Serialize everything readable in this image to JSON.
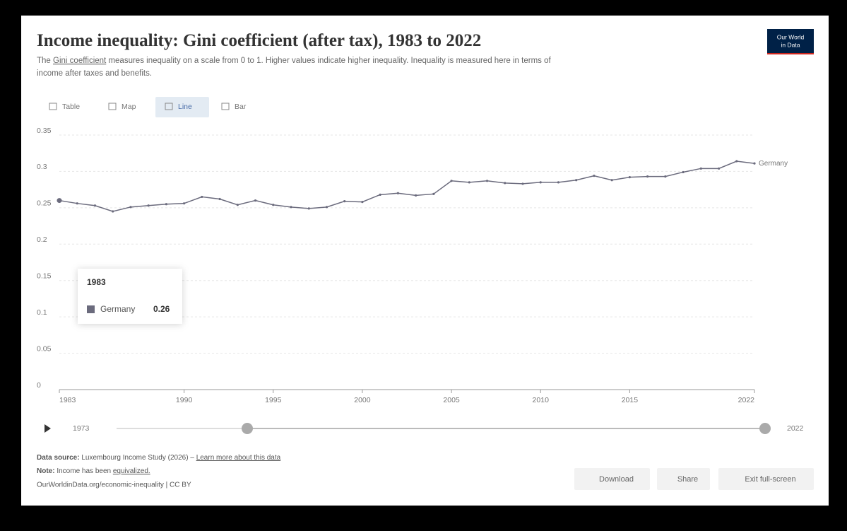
{
  "header": {
    "title": "Income inequality: Gini coefficient (after tax), 1983 to 2022",
    "subtitle": {
      "prefix": "The",
      "link": "Gini coefficient",
      "line1": "measures inequality on a scale from 0 to 1. Higher values indicate higher inequality. Inequality is measured here in terms of",
      "line2": "income after taxes and benefits."
    },
    "logo": {
      "line1": "Our World",
      "line2": "in Data"
    }
  },
  "tabs": [
    "Table",
    "Map",
    "Line",
    "Bar"
  ],
  "chart_data": {
    "type": "line",
    "x": [
      1983,
      1984,
      1985,
      1986,
      1987,
      1988,
      1989,
      1990,
      1991,
      1992,
      1993,
      1994,
      1995,
      1996,
      1997,
      1998,
      1999,
      2000,
      2001,
      2002,
      2003,
      2004,
      2005,
      2006,
      2007,
      2008,
      2009,
      2010,
      2011,
      2012,
      2013,
      2014,
      2015,
      2016,
      2017,
      2018,
      2019,
      2020,
      2021,
      2022
    ],
    "series": [
      {
        "name": "Germany",
        "color": "#6b6b7d",
        "values": [
          0.26,
          0.256,
          0.253,
          0.245,
          0.251,
          0.253,
          0.255,
          0.256,
          0.265,
          0.262,
          0.254,
          0.26,
          0.254,
          0.251,
          0.249,
          0.251,
          0.259,
          0.258,
          0.268,
          0.27,
          0.267,
          0.269,
          0.287,
          0.285,
          0.287,
          0.284,
          0.283,
          0.285,
          0.285,
          0.288,
          0.294,
          0.288,
          0.292,
          0.293,
          0.293,
          0.299,
          0.304,
          0.304,
          0.314,
          0.311
        ]
      }
    ],
    "xlim": [
      1983,
      2022
    ],
    "xticks": [
      1983,
      1990,
      1995,
      2000,
      2005,
      2010,
      2015,
      2022
    ],
    "ylim": [
      0,
      0.35
    ],
    "yticks": [
      0,
      0.05,
      0.1,
      0.15,
      0.2,
      0.25,
      0.3,
      0.35
    ],
    "grid": true
  },
  "timeline": {
    "start": "1973",
    "end": "2022"
  },
  "footer": {
    "source_label": "Data source:",
    "source": "Luxembourg Income Study (2026) –",
    "source_link": "Learn more about this data",
    "note_label": "Note:",
    "note": "Income has been",
    "note_link": "equivalized.",
    "url": "OurWorldinData.org/economic-inequality | CC BY"
  },
  "buttons": [
    "Download",
    "Share",
    "Exit full-screen"
  ]
}
